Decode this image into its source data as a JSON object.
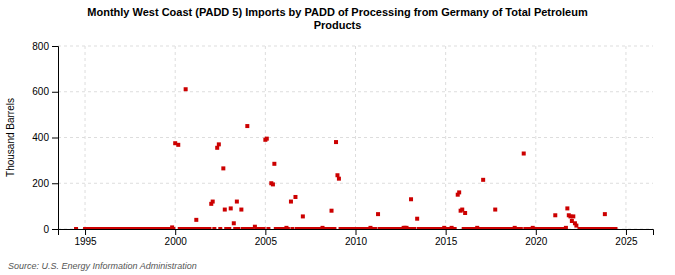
{
  "chart_data": {
    "type": "scatter",
    "title": "Monthly West Coast (PADD 5) Imports by PADD of Processing from Germany of Total Petroleum\nProducts",
    "ylabel": "Thousand Barrels",
    "annotations": [
      "Source: U.S. Energy Information Administration"
    ],
    "color": "#cc0000",
    "marker": "square",
    "grid": true,
    "xlim": [
      1993.5,
      2026.5
    ],
    "ylim": [
      0,
      800
    ],
    "xticks": [
      1995,
      2000,
      2005,
      2010,
      2015,
      2020,
      2025
    ],
    "yticks": [
      0,
      200,
      400,
      600,
      800
    ],
    "x": [
      1994.5,
      1995.0,
      1995.1,
      1995.2,
      1995.3,
      1995.4,
      1995.5,
      1995.6,
      1995.7,
      1995.8,
      1995.9,
      1996.0,
      1996.1,
      1996.2,
      1996.3,
      1996.4,
      1996.5,
      1996.6,
      1996.7,
      1996.8,
      1996.9,
      1997.0,
      1997.1,
      1997.2,
      1997.3,
      1997.4,
      1997.5,
      1997.6,
      1997.7,
      1997.8,
      1997.9,
      1998.0,
      1998.1,
      1998.2,
      1998.3,
      1998.4,
      1998.5,
      1998.6,
      1998.7,
      1998.8,
      1998.9,
      1999.0,
      1999.1,
      1999.2,
      1999.3,
      1999.4,
      1999.5,
      1999.6,
      1999.7,
      1999.83,
      1999.9,
      2000.0,
      2000.17,
      2000.25,
      2000.33,
      2000.42,
      2000.5,
      2000.58,
      2000.67,
      2000.75,
      2000.83,
      2001.0,
      2001.08,
      2001.17,
      2001.25,
      2001.33,
      2001.5,
      2001.58,
      2001.67,
      2001.75,
      2001.9,
      2002.0,
      2002.08,
      2002.17,
      2002.33,
      2002.42,
      2002.5,
      2002.67,
      2002.75,
      2002.83,
      2002.9,
      2003.0,
      2003.08,
      2003.25,
      2003.33,
      2003.42,
      2003.5,
      2003.67,
      2003.75,
      2003.83,
      2003.9,
      2004.0,
      2004.08,
      2004.17,
      2004.25,
      2004.42,
      2004.5,
      2004.58,
      2004.67,
      2004.75,
      2004.9,
      2005.0,
      2005.08,
      2005.17,
      2005.33,
      2005.42,
      2005.5,
      2005.58,
      2005.67,
      2005.75,
      2005.9,
      2006.0,
      2006.08,
      2006.17,
      2006.25,
      2006.42,
      2006.5,
      2006.67,
      2006.75,
      2006.83,
      2006.9,
      2007.0,
      2007.08,
      2007.17,
      2007.25,
      2007.42,
      2007.5,
      2007.67,
      2007.75,
      2007.83,
      2007.9,
      2008.0,
      2008.08,
      2008.17,
      2008.25,
      2008.42,
      2008.58,
      2008.67,
      2008.75,
      2008.83,
      2008.92,
      2009.0,
      2009.08,
      2009.17,
      2009.25,
      2009.42,
      2009.5,
      2009.67,
      2009.75,
      2009.83,
      2009.9,
      2010.0,
      2010.08,
      2010.17,
      2010.25,
      2010.42,
      2010.5,
      2010.67,
      2010.75,
      2010.83,
      2010.9,
      2011.0,
      2011.08,
      2011.25,
      2011.33,
      2011.42,
      2011.5,
      2011.67,
      2011.75,
      2011.83,
      2011.9,
      2012.0,
      2012.08,
      2012.17,
      2012.25,
      2012.42,
      2012.5,
      2012.67,
      2012.75,
      2012.83,
      2012.9,
      2013.0,
      2013.08,
      2013.17,
      2013.25,
      2013.42,
      2013.5,
      2013.67,
      2013.75,
      2013.83,
      2013.9,
      2014.0,
      2014.08,
      2014.17,
      2014.25,
      2014.42,
      2014.5,
      2014.67,
      2014.75,
      2014.83,
      2014.92,
      2015.0,
      2015.08,
      2015.17,
      2015.33,
      2015.42,
      2015.5,
      2015.67,
      2015.75,
      2015.83,
      2015.92,
      2016.0,
      2016.08,
      2016.17,
      2016.25,
      2016.42,
      2016.5,
      2016.67,
      2016.75,
      2016.83,
      2016.9,
      2017.0,
      2017.08,
      2017.17,
      2017.25,
      2017.42,
      2017.5,
      2017.67,
      2017.75,
      2017.83,
      2017.9,
      2018.0,
      2018.08,
      2018.17,
      2018.25,
      2018.42,
      2018.5,
      2018.67,
      2018.75,
      2018.83,
      2018.9,
      2019.0,
      2019.08,
      2019.17,
      2019.33,
      2019.42,
      2019.5,
      2019.67,
      2019.75,
      2019.83,
      2019.9,
      2020.0,
      2020.08,
      2020.17,
      2020.25,
      2020.42,
      2020.5,
      2020.67,
      2020.75,
      2020.83,
      2020.9,
      2021.0,
      2021.08,
      2021.17,
      2021.25,
      2021.42,
      2021.5,
      2021.67,
      2021.75,
      2021.83,
      2021.92,
      2022.0,
      2022.08,
      2022.17,
      2022.25,
      2022.42,
      2022.5,
      2022.67,
      2022.75,
      2022.83,
      2022.9,
      2023.0,
      2023.08,
      2023.17,
      2023.25,
      2023.42,
      2023.5,
      2023.67,
      2023.75,
      2023.83,
      2023.9,
      2024.0,
      2024.08,
      2024.17,
      2024.25,
      2024.42
    ],
    "values": [
      0,
      0,
      0,
      0,
      0,
      0,
      0,
      0,
      0,
      0,
      0,
      0,
      0,
      0,
      0,
      0,
      0,
      0,
      0,
      0,
      0,
      0,
      0,
      0,
      0,
      0,
      0,
      0,
      0,
      0,
      0,
      0,
      0,
      0,
      0,
      0,
      0,
      0,
      0,
      0,
      0,
      0,
      0,
      0,
      0,
      0,
      0,
      0,
      0,
      7,
      0,
      375,
      368,
      0,
      0,
      0,
      0,
      611,
      0,
      0,
      0,
      0,
      0,
      40,
      0,
      0,
      0,
      0,
      0,
      0,
      0,
      110,
      120,
      0,
      355,
      370,
      0,
      265,
      85,
      0,
      0,
      0,
      90,
      25,
      0,
      120,
      0,
      85,
      0,
      0,
      0,
      450,
      0,
      0,
      0,
      10,
      0,
      0,
      0,
      0,
      0,
      390,
      395,
      0,
      200,
      195,
      285,
      0,
      0,
      0,
      0,
      0,
      0,
      5,
      0,
      120,
      0,
      140,
      0,
      0,
      0,
      0,
      55,
      0,
      0,
      0,
      0,
      0,
      0,
      0,
      0,
      0,
      0,
      5,
      0,
      0,
      0,
      80,
      0,
      0,
      380,
      235,
      220,
      0,
      0,
      0,
      0,
      0,
      0,
      0,
      0,
      0,
      0,
      0,
      0,
      0,
      0,
      0,
      0,
      5,
      0,
      0,
      0,
      65,
      0,
      0,
      0,
      0,
      0,
      0,
      0,
      0,
      0,
      0,
      0,
      0,
      0,
      5,
      5,
      5,
      0,
      0,
      130,
      0,
      0,
      45,
      0,
      0,
      0,
      0,
      0,
      0,
      0,
      0,
      0,
      0,
      0,
      0,
      0,
      0,
      5,
      0,
      0,
      0,
      5,
      0,
      0,
      150,
      160,
      80,
      85,
      0,
      70,
      0,
      0,
      0,
      0,
      0,
      5,
      0,
      0,
      0,
      215,
      0,
      0,
      0,
      0,
      0,
      85,
      0,
      0,
      0,
      0,
      0,
      0,
      0,
      0,
      0,
      0,
      5,
      0,
      0,
      0,
      0,
      330,
      0,
      0,
      0,
      0,
      5,
      0,
      0,
      0,
      0,
      0,
      0,
      0,
      0,
      0,
      0,
      0,
      0,
      60,
      0,
      0,
      0,
      0,
      5,
      90,
      60,
      55,
      35,
      55,
      25,
      15,
      0,
      0,
      0,
      0,
      0,
      0,
      0,
      0,
      0,
      0,
      0,
      0,
      0,
      0,
      65,
      0,
      0,
      0,
      0,
      0,
      0
    ]
  }
}
